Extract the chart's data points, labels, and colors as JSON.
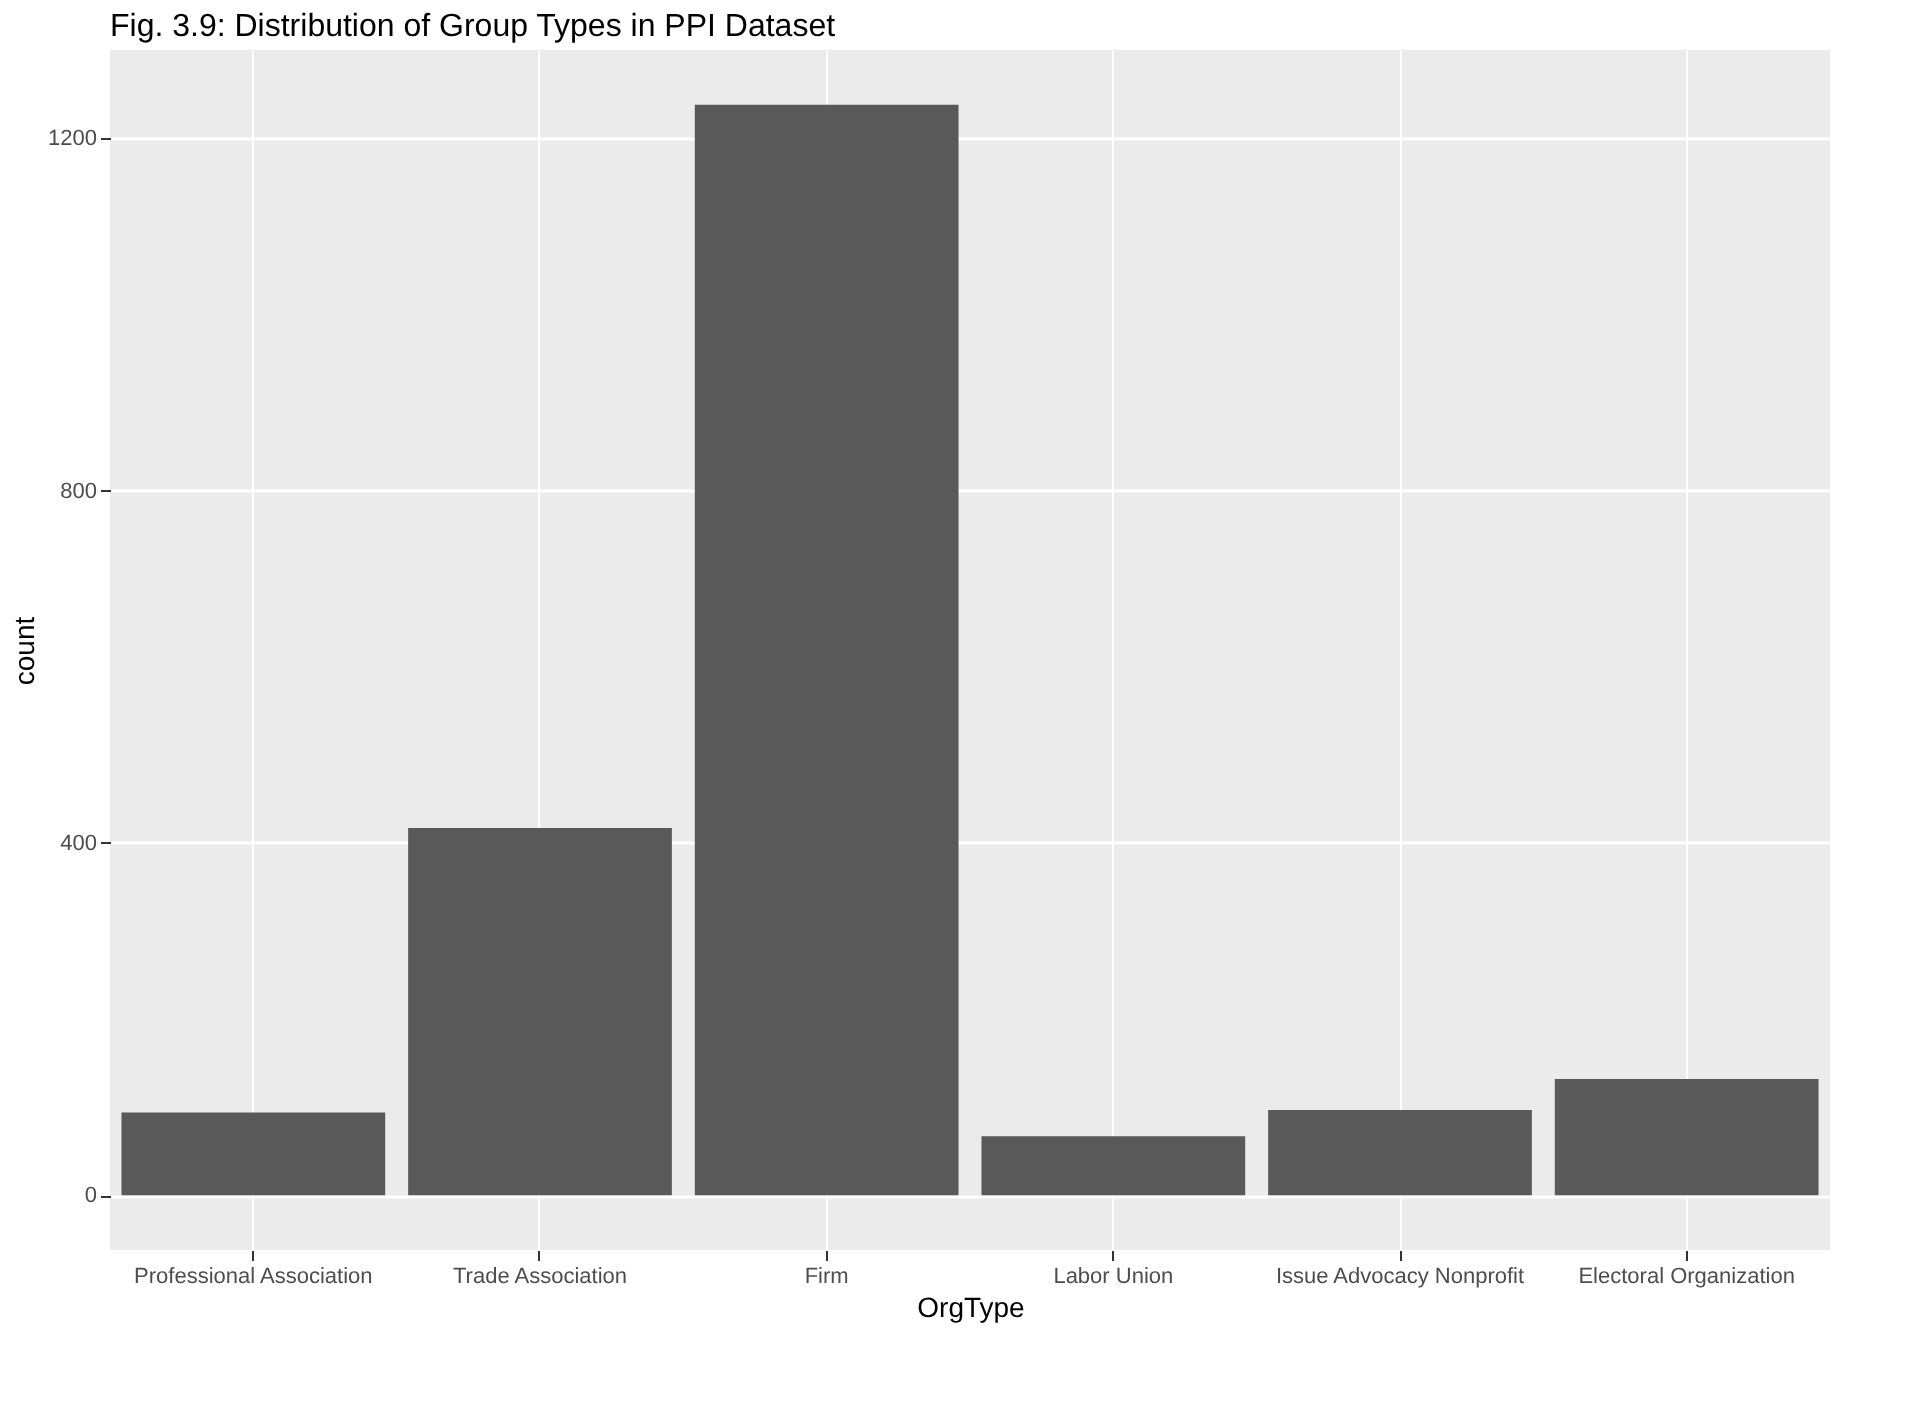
{
  "chart_data": {
    "type": "bar",
    "title": "Fig. 3.9: Distribution of Group Types in PPI Dataset",
    "xlabel": "OrgType",
    "ylabel": "count",
    "categories": [
      "Professional Association",
      "Trade Association",
      "Firm",
      "Labor Union",
      "Issue Advocacy Nonprofit",
      "Electoral Organization"
    ],
    "values": [
      94,
      417,
      1238,
      67,
      97,
      132
    ],
    "color": "#595959",
    "ylim": [
      -62,
      1300
    ],
    "yticks": [
      0,
      400,
      800,
      1200
    ],
    "grid": true
  }
}
